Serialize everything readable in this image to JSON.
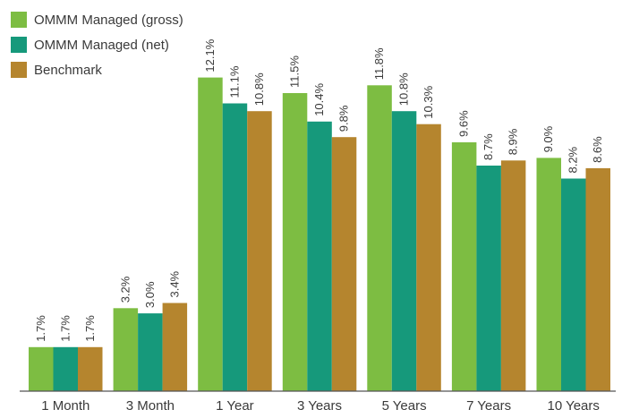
{
  "chart_data": {
    "type": "bar",
    "categories": [
      "1 Month",
      "3 Month",
      "1  Year",
      "3 Years",
      "5 Years",
      "7 Years",
      "10 Years"
    ],
    "series": [
      {
        "name": "OMMM Managed (gross)",
        "color": "#7dbd42",
        "values": [
          1.7,
          3.2,
          12.1,
          11.5,
          11.8,
          9.6,
          9.0
        ],
        "labels": [
          "1.7%",
          "3.2%",
          "12.1%",
          "11.5%",
          "11.8%",
          "9.6%",
          "9.0%"
        ]
      },
      {
        "name": "OMMM Managed (net)",
        "color": "#16997b",
        "values": [
          1.7,
          3.0,
          11.1,
          10.4,
          10.8,
          8.7,
          8.2
        ],
        "labels": [
          "1.7%",
          "3.0%",
          "11.1%",
          "10.4%",
          "10.8%",
          "8.7%",
          "8.2%"
        ]
      },
      {
        "name": "Benchmark",
        "color": "#b5852e",
        "values": [
          1.7,
          3.4,
          10.8,
          9.8,
          10.3,
          8.9,
          8.6
        ],
        "labels": [
          "1.7%",
          "3.4%",
          "10.8%",
          "9.8%",
          "10.3%",
          "8.9%",
          "8.6%"
        ]
      }
    ],
    "ylim": [
      0,
      12.5
    ],
    "grid": false,
    "legend_position": "top-left",
    "title": "",
    "xlabel": "",
    "ylabel": ""
  }
}
